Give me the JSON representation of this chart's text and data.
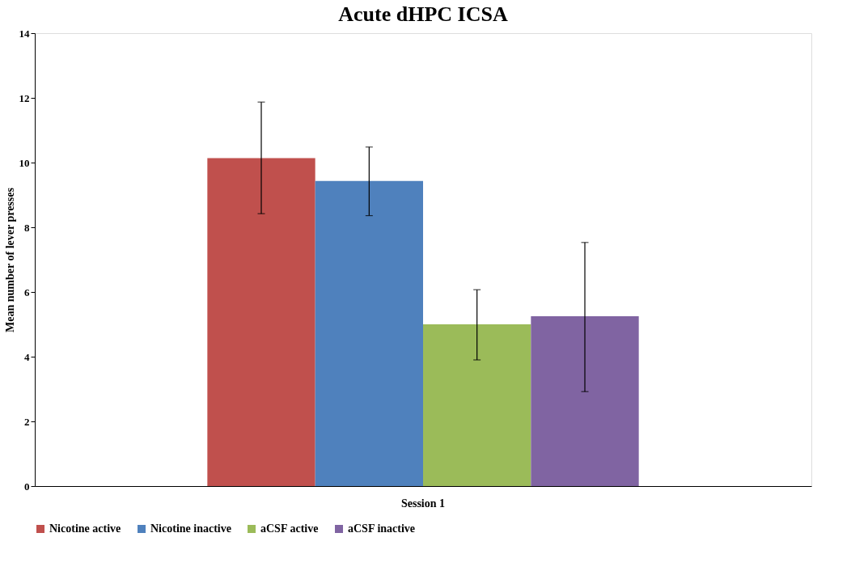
{
  "chart_data": {
    "type": "bar",
    "title": "Acute dHPC ICSA",
    "ylabel": "Mean number of lever presses",
    "categories": [
      "Session 1"
    ],
    "series": [
      {
        "name": "Nicotine active",
        "color": "#c0504d",
        "values": [
          10.14
        ],
        "errors": [
          [
            8.42,
            11.87
          ]
        ]
      },
      {
        "name": "Nicotine inactive",
        "color": "#4f81bd",
        "values": [
          9.43
        ],
        "errors": [
          [
            8.36,
            10.48
          ]
        ]
      },
      {
        "name": "aCSF active",
        "color": "#9bbb59",
        "values": [
          5.0
        ],
        "errors": [
          [
            3.9,
            6.07
          ]
        ]
      },
      {
        "name": "aCSF inactive",
        "color": "#8064a2",
        "values": [
          5.25
        ],
        "errors": [
          [
            2.92,
            7.53
          ]
        ]
      }
    ],
    "ylim": [
      0,
      14
    ],
    "yticks": [
      0,
      2,
      4,
      6,
      8,
      10,
      12,
      14
    ],
    "legend": "bottom"
  }
}
